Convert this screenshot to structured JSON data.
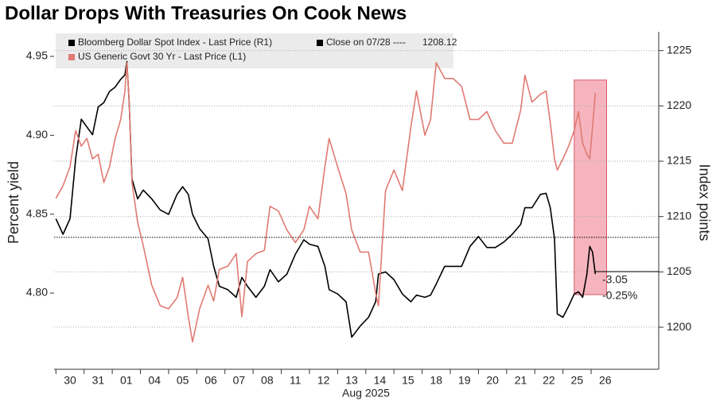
{
  "chart_data": {
    "type": "line",
    "title": "Dollar Drops With Treasuries On Cook News",
    "ylabel": "Percent yield",
    "y2label": "Index points",
    "xlabel": "Aug 2025",
    "x": [
      -0.5,
      -0.25,
      0,
      0.2,
      0.4,
      0.6,
      0.8,
      1.0,
      1.2,
      1.4,
      1.6,
      1.8,
      1.95,
      2.02,
      2.1,
      2.2,
      2.4,
      2.6,
      2.9,
      3.2,
      3.5,
      3.8,
      4.0,
      4.2,
      4.35,
      4.6,
      4.9,
      5.1,
      5.3,
      5.6,
      5.9,
      6.1,
      6.3,
      6.6,
      6.9,
      7.1,
      7.4,
      7.7,
      8.0,
      8.3,
      8.5,
      8.8,
      9.05,
      9.2,
      9.5,
      9.8,
      10.0,
      10.3,
      10.6,
      10.85,
      10.95,
      11.2,
      11.5,
      11.8,
      12.1,
      12.3,
      12.6,
      12.8,
      13.0,
      13.3,
      13.6,
      13.9,
      14.2,
      14.5,
      14.8,
      15.1,
      15.4,
      15.7,
      16.0,
      16.15,
      16.4,
      16.7,
      16.9,
      17.05,
      17.2,
      17.3,
      17.5,
      17.7,
      17.9,
      18.05,
      18.2,
      18.35,
      18.45,
      18.55,
      18.65
    ],
    "series": [
      {
        "name": "Bloomberg Dollar Spot Index - Last Price (R1)",
        "color": "#000000",
        "axis": "y2",
        "values": [
          1209.8,
          1208.4,
          1209.8,
          1215.2,
          1218.8,
          1218.1,
          1217.4,
          1219.9,
          1220.3,
          1221.3,
          1221.7,
          1222.4,
          1222.8,
          1224.0,
          1220.3,
          1213.4,
          1211.6,
          1212.4,
          1211.6,
          1210.6,
          1210.2,
          1212.0,
          1212.7,
          1212.0,
          1210.2,
          1208.9,
          1208.0,
          1205.5,
          1203.7,
          1203.4,
          1202.7,
          1204.5,
          1203.7,
          1202.7,
          1203.7,
          1205.2,
          1204.1,
          1204.8,
          1206.6,
          1207.9,
          1207.5,
          1207.3,
          1205.5,
          1203.4,
          1203.0,
          1202.3,
          1199.1,
          1200.1,
          1200.9,
          1202.3,
          1204.8,
          1205.0,
          1204.3,
          1203.0,
          1202.3,
          1202.9,
          1202.7,
          1202.9,
          1203.9,
          1205.5,
          1205.5,
          1205.5,
          1207.3,
          1208.2,
          1207.2,
          1207.2,
          1207.7,
          1208.4,
          1209.3,
          1210.8,
          1210.8,
          1212.0,
          1212.1,
          1210.8,
          1208.0,
          1201.2,
          1200.9,
          1201.9,
          1203.0,
          1203.2,
          1202.7,
          1204.8,
          1207.3,
          1206.8,
          1204.8
        ]
      },
      {
        "name": "US Generic Govt 30 Yr - Last Price (L1)",
        "color": "#e07a72",
        "values": [
          4.86,
          4.868,
          4.88,
          4.903,
          4.893,
          4.898,
          4.885,
          4.888,
          4.87,
          4.88,
          4.898,
          4.91,
          4.928,
          4.946,
          4.921,
          4.87,
          4.845,
          4.83,
          4.805,
          4.792,
          4.79,
          4.797,
          4.81,
          4.785,
          4.769,
          4.79,
          4.805,
          4.795,
          4.815,
          4.817,
          4.825,
          4.785,
          4.82,
          4.825,
          4.827,
          4.855,
          4.852,
          4.84,
          4.832,
          4.84,
          4.855,
          4.847,
          4.88,
          4.898,
          4.88,
          4.863,
          4.84,
          4.826,
          4.826,
          4.8,
          4.792,
          4.865,
          4.878,
          4.865,
          4.905,
          4.928,
          4.9,
          4.91,
          4.946,
          4.936,
          4.936,
          4.931,
          4.91,
          4.91,
          4.915,
          4.903,
          4.895,
          4.895,
          4.916,
          4.938,
          4.921,
          4.926,
          4.928,
          4.908,
          4.885,
          4.878,
          4.885,
          4.893,
          4.903,
          4.915,
          4.895,
          4.888,
          4.885,
          4.905,
          4.927
        ]
      }
    ],
    "reference": {
      "label": "Close on 07/28 ----",
      "value": 1208.12,
      "axis": "y2"
    },
    "highlight": {
      "x": [
        17.9,
        19.05
      ],
      "y": [
        4.799,
        4.935
      ]
    },
    "annotations": [
      "-3.05",
      "-0.25%"
    ],
    "xlim": [
      -0.565,
      20.9
    ],
    "xticks": [
      {
        "value": 0,
        "label": "30"
      },
      {
        "value": 1,
        "label": "31"
      },
      {
        "value": 2,
        "label": "01"
      },
      {
        "value": 3,
        "label": "04"
      },
      {
        "value": 4,
        "label": "05"
      },
      {
        "value": 5,
        "label": "06"
      },
      {
        "value": 6,
        "label": "07"
      },
      {
        "value": 7,
        "label": "08"
      },
      {
        "value": 8,
        "label": "11"
      },
      {
        "value": 9,
        "label": "12"
      },
      {
        "value": 10,
        "label": "13"
      },
      {
        "value": 11,
        "label": "14"
      },
      {
        "value": 12,
        "label": "15"
      },
      {
        "value": 13,
        "label": "18"
      },
      {
        "value": 14,
        "label": "19"
      },
      {
        "value": 15,
        "label": "20"
      },
      {
        "value": 16,
        "label": "21"
      },
      {
        "value": 17,
        "label": "22"
      },
      {
        "value": 18,
        "label": "25"
      },
      {
        "value": 19,
        "label": "26"
      }
    ],
    "ylim": [
      4.7517,
      4.9656
    ],
    "yticks": [
      {
        "value": 4.8,
        "label": "4.80"
      },
      4.85,
      {
        "value": 4.9,
        "label": "4.90"
      },
      4.95
    ],
    "y2lim": [
      1196.2,
      1226.7
    ],
    "y2ticks": [
      1200,
      1205,
      1210,
      1215,
      1220,
      1225
    ],
    "grid": true
  }
}
